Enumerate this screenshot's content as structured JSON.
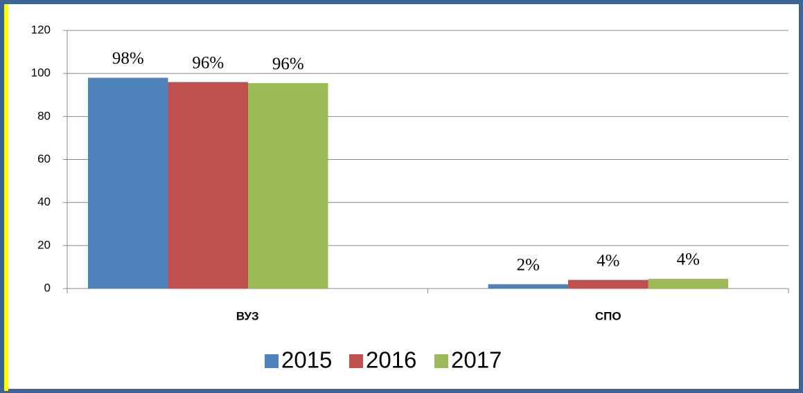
{
  "chart_data": {
    "type": "bar",
    "categories": [
      "ВУЗ",
      "СПО"
    ],
    "series": [
      {
        "name": "2015",
        "color": "#4f81bd",
        "values": [
          98,
          2
        ],
        "value_labels": [
          "98%",
          "2%"
        ]
      },
      {
        "name": "2016",
        "color": "#c0504d",
        "values": [
          96,
          4
        ],
        "value_labels": [
          "96%",
          "4%"
        ]
      },
      {
        "name": "2017",
        "color": "#9bbb59",
        "values": [
          95.5,
          4.5
        ],
        "value_labels": [
          "96%",
          "4%"
        ]
      }
    ],
    "ylim": [
      0,
      120
    ],
    "yticks": [
      0,
      20,
      40,
      60,
      80,
      100,
      120
    ],
    "grid": true,
    "legend": "bottom"
  }
}
